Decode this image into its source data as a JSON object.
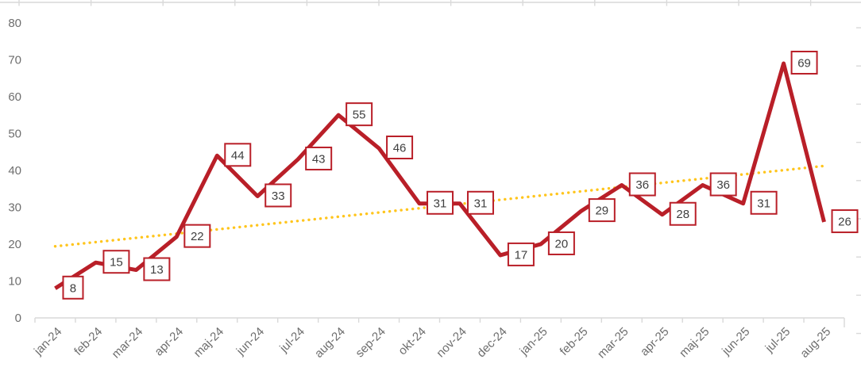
{
  "chart_data": {
    "type": "line",
    "title": "",
    "categories": [
      "jan-24",
      "feb-24",
      "mar-24",
      "apr-24",
      "maj-24",
      "jun-24",
      "jul-24",
      "aug-24",
      "sep-24",
      "okt-24",
      "nov-24",
      "dec-24",
      "jan-25",
      "feb-25",
      "mar-25",
      "apr-25",
      "maj-25",
      "jun-25",
      "jul-25",
      "aug-25"
    ],
    "series": [
      {
        "name": "monthly-values",
        "color": "#B91F28",
        "values": [
          8,
          15,
          13,
          22,
          44,
          33,
          43,
          55,
          46,
          31,
          31,
          17,
          20,
          29,
          36,
          28,
          36,
          31,
          69,
          26
        ],
        "data_labels": true
      }
    ],
    "trendline": {
      "name": "linear-trend",
      "style": "dotted",
      "color": "#FFC51D",
      "start_value": 19.4,
      "end_value": 41.2
    },
    "y_axis": {
      "min": 0,
      "max": 80,
      "step": 10,
      "tick_labels": [
        "0",
        "10",
        "20",
        "30",
        "40",
        "50",
        "60",
        "70",
        "80"
      ]
    },
    "x_axis": {
      "rotation": -45,
      "tick_labels": [
        "jan-24",
        "feb-24",
        "mar-24",
        "apr-24",
        "maj-24",
        "jun-24",
        "jul-24",
        "aug-24",
        "sep-24",
        "okt-24",
        "nov-24",
        "dec-24",
        "jan-25",
        "feb-25",
        "mar-25",
        "apr-25",
        "maj-25",
        "jun-25",
        "jul-25",
        "aug-25"
      ]
    },
    "grid": false,
    "legend": false,
    "colors": {
      "axis_line": "#D9D9D9",
      "axis_text": "#6E6E6E",
      "data_label_text": "#3F3F3F",
      "data_label_border": "#B91F28",
      "data_label_bg": "#FFFFFF",
      "background": "#FFFFFF"
    }
  }
}
